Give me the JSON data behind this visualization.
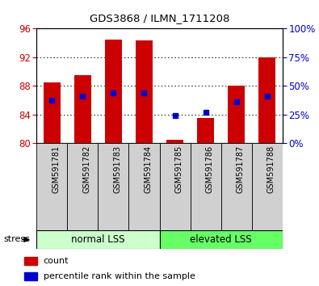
{
  "title": "GDS3868 / ILMN_1711208",
  "categories": [
    "GSM591781",
    "GSM591782",
    "GSM591783",
    "GSM591784",
    "GSM591785",
    "GSM591786",
    "GSM591787",
    "GSM591788"
  ],
  "bar_tops": [
    88.5,
    89.5,
    94.5,
    94.3,
    80.5,
    83.5,
    88.0,
    92.0
  ],
  "bar_bottom": 80.0,
  "blue_y_left": [
    86.0,
    86.5,
    87.0,
    87.0,
    83.8,
    84.3,
    85.8,
    86.5
  ],
  "ylim_left": [
    80,
    96
  ],
  "ylim_right": [
    0,
    100
  ],
  "yticks_left": [
    80,
    84,
    88,
    92,
    96
  ],
  "yticks_right": [
    0,
    25,
    50,
    75,
    100
  ],
  "bar_color": "#cc0000",
  "blue_color": "#0000cc",
  "normal_label": "normal LSS",
  "elevated_label": "elevated LSS",
  "normal_color": "#ccffcc",
  "elevated_color": "#66ff66",
  "stress_label": "stress",
  "legend_count": "count",
  "legend_pct": "percentile rank within the sample",
  "tick_label_color_left": "#cc0000",
  "tick_label_color_right": "#0000cc",
  "bg_color": "#ffffff",
  "label_box_color": "#d0d0d0"
}
